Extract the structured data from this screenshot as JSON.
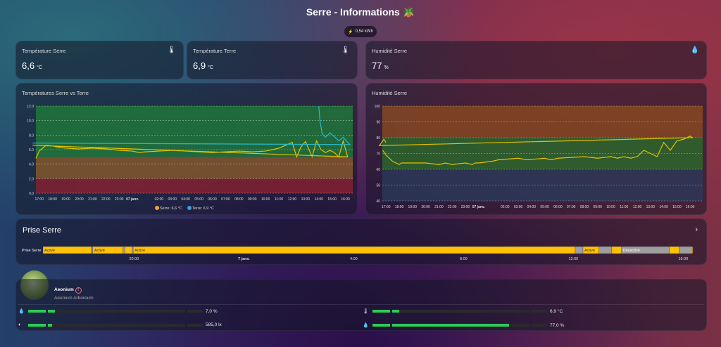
{
  "header": {
    "title": "Serre - Informations",
    "title_icon": "potted-plant",
    "energy": "0,54 kWh",
    "energy_icon": "lightning"
  },
  "stats": [
    {
      "label": "Température Serre",
      "value": "6,6",
      "unit": "°C",
      "icon": "thermometer"
    },
    {
      "label": "Température Terre",
      "value": "6,9",
      "unit": "°C",
      "icon": "thermometer"
    },
    {
      "label": "Humidité Serre",
      "value": "77",
      "unit": "%",
      "icon": "water-drop"
    }
  ],
  "chart_data": [
    {
      "type": "line",
      "title": "Températures Serre vs Terre",
      "ylim": [
        0,
        12
      ],
      "yticks": [
        "0.0",
        "2.0",
        "4.0",
        "6.0",
        "8.0",
        "10.0",
        "12.0"
      ],
      "xticks": [
        "17:00",
        "18:00",
        "19:00",
        "20:00",
        "21:00",
        "22:00",
        "23:00",
        "07 janv.",
        "02:00",
        "03:00",
        "04:00",
        "05:00",
        "06:00",
        "07:00",
        "08:00",
        "09:00",
        "10:00",
        "11:00",
        "12:00",
        "13:00",
        "14:00",
        "15:00",
        "16:00"
      ],
      "bands": [
        {
          "from": 0,
          "to": 2,
          "color": "#8a2030"
        },
        {
          "from": 2,
          "to": 5,
          "color": "#8a5a2a"
        },
        {
          "from": 5,
          "to": 12,
          "color": "#1f7a3a"
        }
      ],
      "grid": true,
      "legend": "bottom",
      "series": [
        {
          "name": "Serre",
          "legend": "Serre: 6,6 °C",
          "color": "#e6c000",
          "legend_color": "#f5a623",
          "points": [
            [
              "16:45",
              4.8
            ],
            [
              "17:00",
              5.8
            ],
            [
              "17:30",
              6.6
            ],
            [
              "18:00",
              6.5
            ],
            [
              "18:30",
              6.3
            ],
            [
              "19:00",
              6.2
            ],
            [
              "20:00",
              6.1
            ],
            [
              "21:00",
              6.2
            ],
            [
              "22:00",
              6.1
            ],
            [
              "23:00",
              5.9
            ],
            [
              "00:00",
              5.8
            ],
            [
              "00:30",
              5.6
            ],
            [
              "01:00",
              5.7
            ],
            [
              "02:00",
              5.8
            ],
            [
              "03:00",
              5.9
            ],
            [
              "04:00",
              5.8
            ],
            [
              "05:00",
              5.7
            ],
            [
              "06:00",
              5.6
            ],
            [
              "07:00",
              5.7
            ],
            [
              "08:00",
              5.8
            ],
            [
              "09:00",
              5.7
            ],
            [
              "10:00",
              5.8
            ],
            [
              "10:30",
              6.0
            ],
            [
              "11:00",
              6.2
            ],
            [
              "11:30",
              6.6
            ],
            [
              "12:00",
              7.0
            ],
            [
              "12:20",
              5.0
            ],
            [
              "12:40",
              6.4
            ],
            [
              "13:00",
              7.1
            ],
            [
              "13:30",
              5.0
            ],
            [
              "13:50",
              7.2
            ],
            [
              "14:10",
              6.0
            ],
            [
              "14:30",
              5.6
            ],
            [
              "14:50",
              5.9
            ],
            [
              "15:10",
              5.6
            ],
            [
              "15:30",
              5.0
            ],
            [
              "15:50",
              7.2
            ],
            [
              "16:10",
              5.0
            ],
            [
              "16:30",
              6.6
            ]
          ]
        },
        {
          "name": "Terre",
          "legend": "Terre: 6,9 °C",
          "color": "#2ab8c8",
          "legend_color": "#3aa0e0",
          "points": [
            [
              "14:00",
              12.0
            ],
            [
              "14:05",
              10.0
            ],
            [
              "14:15",
              8.2
            ],
            [
              "14:30",
              7.7
            ],
            [
              "14:50",
              8.3
            ],
            [
              "15:10",
              7.8
            ],
            [
              "15:30",
              7.2
            ],
            [
              "15:50",
              7.7
            ],
            [
              "16:10",
              7.0
            ],
            [
              "16:20",
              6.7
            ],
            [
              "16:30",
              6.9
            ]
          ]
        }
      ]
    },
    {
      "type": "line",
      "title": "Humidité Serre",
      "ylim": [
        40,
        100
      ],
      "yticks": [
        "40",
        "50",
        "60",
        "70",
        "80",
        "90",
        "100"
      ],
      "xticks": [
        "17:00",
        "18:00",
        "19:00",
        "20:00",
        "21:00",
        "22:00",
        "23:00",
        "07 janv.",
        "02:00",
        "03:00",
        "04:00",
        "05:00",
        "06:00",
        "07:00",
        "08:00",
        "09:00",
        "10:00",
        "11:00",
        "12:00",
        "13:00",
        "14:00",
        "15:00",
        "16:00"
      ],
      "bands": [
        {
          "from": 40,
          "to": 60,
          "color": "#2a3a5a"
        },
        {
          "from": 60,
          "to": 80,
          "color": "#2a6a2a"
        },
        {
          "from": 80,
          "to": 100,
          "color": "#8a4a20"
        }
      ],
      "grid": true,
      "series": [
        {
          "color": "#e6c000",
          "points": [
            [
              "16:45",
              72
            ],
            [
              "17:00",
              69
            ],
            [
              "17:30",
              65
            ],
            [
              "18:00",
              63
            ],
            [
              "18:10",
              64
            ],
            [
              "20:00",
              64
            ],
            [
              "21:00",
              63
            ],
            [
              "21:30",
              64
            ],
            [
              "22:00",
              63
            ],
            [
              "23:00",
              64
            ],
            [
              "23:30",
              63
            ],
            [
              "23:45",
              64
            ],
            [
              "00:00",
              64
            ],
            [
              "01:00",
              65
            ],
            [
              "01:30",
              66
            ],
            [
              "03:00",
              67
            ],
            [
              "03:40",
              66
            ],
            [
              "05:00",
              67
            ],
            [
              "05:30",
              66
            ],
            [
              "06:00",
              67
            ],
            [
              "08:00",
              68
            ],
            [
              "09:00",
              67
            ],
            [
              "10:00",
              68
            ],
            [
              "10:30",
              67
            ],
            [
              "11:00",
              68
            ],
            [
              "11:30",
              67
            ],
            [
              "12:00",
              68
            ],
            [
              "12:30",
              72
            ],
            [
              "13:30",
              68
            ],
            [
              "14:00",
              77
            ],
            [
              "14:30",
              72
            ],
            [
              "15:00",
              78
            ],
            [
              "15:30",
              79
            ],
            [
              "16:00",
              81
            ],
            [
              "16:10",
              80
            ],
            [
              "16:30",
              75
            ],
            [
              "16:50",
              79
            ],
            [
              "17:00",
              77
            ]
          ]
        }
      ]
    }
  ],
  "timeline": {
    "title": "Prise Serre",
    "row_label": "Prise Serre",
    "on_color": "#ffc107",
    "off_color": "#9e9e9e",
    "ticks": [
      "20:00",
      "7 janv.",
      "4:00",
      "8:00",
      "12:00",
      "16:00"
    ],
    "segments": [
      {
        "state": "on",
        "label": "Activé",
        "from": "16:41",
        "to": "18:26"
      },
      {
        "state": "off",
        "label": "",
        "from": "18:26",
        "to": "18:30"
      },
      {
        "state": "on",
        "label": "Activé",
        "from": "18:30",
        "to": "19:36"
      },
      {
        "state": "off",
        "label": "",
        "from": "19:36",
        "to": "19:40"
      },
      {
        "state": "on",
        "label": "",
        "from": "19:40",
        "to": "19:56"
      },
      {
        "state": "off",
        "label": "",
        "from": "19:56",
        "to": "19:58"
      },
      {
        "state": "on",
        "label": "Activé",
        "from": "19:58",
        "to": "12:04"
      },
      {
        "state": "off",
        "label": "",
        "from": "12:04",
        "to": "12:21"
      },
      {
        "state": "on",
        "label": "Activé",
        "from": "12:21",
        "to": "12:56"
      },
      {
        "state": "off",
        "label": "",
        "from": "12:56",
        "to": "13:24"
      },
      {
        "state": "on",
        "label": "",
        "from": "13:24",
        "to": "13:45"
      },
      {
        "state": "off",
        "label": "Désactivé",
        "from": "13:45",
        "to": "15:30"
      },
      {
        "state": "on",
        "label": "",
        "from": "15:30",
        "to": "15:51"
      },
      {
        "state": "off",
        "label": "",
        "from": "15:51",
        "to": "16:20"
      },
      {
        "state": "on",
        "label": "",
        "from": "16:20",
        "to": "16:43"
      }
    ]
  },
  "plant": {
    "name": "Aeonium",
    "species": "Aeonium Arboreum",
    "alert_icon": "exclamation-circle",
    "sensors": [
      {
        "icon": "water-drop",
        "value": "7,0 %",
        "fill": 0.05
      },
      {
        "icon": "brightness",
        "value": "585,0 lx",
        "fill": 0.03
      },
      {
        "icon": "thermometer",
        "value": "6,9 °C",
        "fill": 0.05
      },
      {
        "icon": "humidity-drop",
        "value": "77,0 %",
        "fill": 0.85
      }
    ]
  }
}
